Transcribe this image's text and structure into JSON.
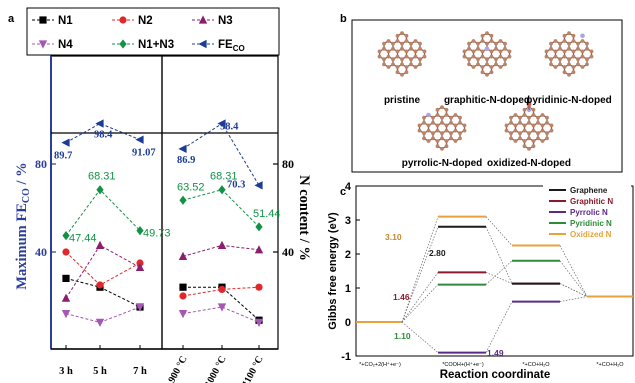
{
  "panels": {
    "a": "a",
    "b": "b",
    "c": "c"
  },
  "chart_data": [
    {
      "panel": "a",
      "type": "scatter",
      "title": "",
      "ylabel_left": "Maximum FE_CO / %",
      "ylabel_right": "N content / %",
      "left_ticks": [
        40,
        80
      ],
      "right_ticks": [
        40,
        80
      ],
      "groups": [
        {
          "categories": [
            "3 h",
            "5 h",
            "7 h"
          ]
        },
        {
          "categories": [
            "900 °C",
            "1000 °C",
            "1100 °C"
          ]
        }
      ],
      "legend": {
        "position": "top",
        "rows": [
          [
            "N1",
            "N2",
            "N3"
          ],
          [
            "N4",
            "N1+N3",
            "FE_CO"
          ]
        ]
      },
      "series": [
        {
          "name": "N1",
          "color": "#000000",
          "marker": "square",
          "values": [
            [
              28,
              24,
              15
            ],
            [
              24,
              24,
              9
            ]
          ]
        },
        {
          "name": "N2",
          "color": "#e0272a",
          "marker": "circle",
          "values": [
            [
              40,
              25,
              35
            ],
            [
              20,
              23,
              24
            ]
          ]
        },
        {
          "name": "N3",
          "color": "#8b1e6e",
          "marker": "triangle-up",
          "values": [
            [
              19,
              43,
              33
            ],
            [
              38,
              43,
              41
            ]
          ]
        },
        {
          "name": "N4",
          "color": "#a557b4",
          "marker": "triangle-down",
          "values": [
            [
              12,
              8,
              15
            ],
            [
              12,
              15,
              8
            ]
          ]
        },
        {
          "name": "N1+N3",
          "color": "#139245",
          "marker": "diamond",
          "values": [
            [
              47.44,
              68.31,
              49.73
            ],
            [
              63.52,
              68.31,
              51.44
            ]
          ]
        },
        {
          "name": "FE_CO",
          "color": "#1d3c96",
          "marker": "triangle-left",
          "values": [
            [
              89.7,
              98.4,
              91.07
            ],
            [
              86.9,
              98.4,
              70.3
            ]
          ]
        }
      ],
      "labels": {
        "fe": [
          [
            "89.7",
            "98.4",
            "91.07"
          ],
          [
            "86.9",
            "98.4",
            "70.3"
          ]
        ],
        "n13": [
          [
            "47.44",
            "68.31",
            "49.73"
          ],
          [
            "63.52",
            "68.31",
            "51.44"
          ]
        ]
      }
    },
    {
      "panel": "b",
      "type": "other",
      "structures": [
        "pristine",
        "graphitic-N-doped",
        "pyridinic-N-doped",
        "pyrrolic-N-doped",
        "oxidized-N-doped"
      ],
      "atom_colors": {
        "carbon": "#b9846a",
        "nitrogen": "#a8a6e0",
        "oxygen": "#e05050"
      }
    },
    {
      "panel": "c",
      "type": "line",
      "title": "",
      "xlabel": "Reaction coordinate",
      "ylabel": "Gibbs free energy (eV)",
      "ylim": [
        -1,
        4
      ],
      "yticks": [
        -1,
        0,
        1,
        2,
        3,
        4
      ],
      "categories": [
        "*+CO₂+2(H⁺+e⁻)",
        "*COOH+(H⁺+e⁻)",
        "*+CO+H₂O",
        "*+CO+H₂O"
      ],
      "legend": {
        "position": "top-right"
      },
      "series": [
        {
          "name": "Graphene",
          "color": "#1a1a1a",
          "values": [
            0,
            2.8,
            1.13,
            0.75
          ]
        },
        {
          "name": "Graphitic N",
          "color": "#8b1a2b",
          "values": [
            0,
            1.46,
            1.13,
            0.75
          ]
        },
        {
          "name": "Pyrrolic N",
          "color": "#5b2a86",
          "values": [
            0,
            -0.9,
            0.6,
            0.75
          ]
        },
        {
          "name": "Pyridinic N",
          "color": "#2f8a3c",
          "values": [
            0,
            1.1,
            1.8,
            0.75
          ]
        },
        {
          "name": "Oxidized N",
          "color": "#e8a13b",
          "values": [
            0,
            3.1,
            2.25,
            0.75
          ]
        }
      ],
      "annotations": [
        {
          "text": "3.10",
          "series": 4,
          "color": "#c58a2e"
        },
        {
          "text": "2.80",
          "series": 0,
          "color": "#1a1a1a"
        },
        {
          "text": "1.46",
          "series": 1,
          "color": "#8b1a2b"
        },
        {
          "text": "1.10",
          "series": 3,
          "color": "#2f8a3c"
        },
        {
          "text": "1.49",
          "series": 2,
          "color": "#5b2a86"
        }
      ]
    }
  ]
}
